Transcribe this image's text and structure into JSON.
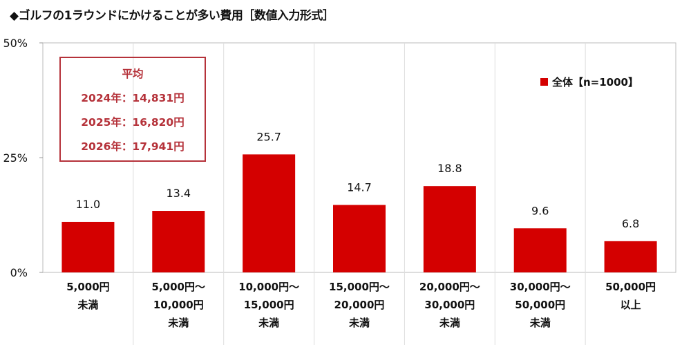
{
  "title": "◆ゴルフの1ラウンドにかけることが多い費用［数値入力形式］",
  "average_box": {
    "heading": "平均",
    "lines": [
      "2024年：14,831円",
      "2025年：16,820円",
      "2026年：17,941円"
    ]
  },
  "chart_data": {
    "type": "bar",
    "title": "◆ゴルフの1ラウンドにかけることが多い費用［数値入力形式］",
    "categories": [
      [
        "5,000円",
        "未満"
      ],
      [
        "5,000円～",
        "10,000円",
        "未満"
      ],
      [
        "10,000円～",
        "15,000円",
        "未満"
      ],
      [
        "15,000円～",
        "20,000円",
        "未満"
      ],
      [
        "20,000円～",
        "30,000円",
        "未満"
      ],
      [
        "30,000円～",
        "50,000円",
        "未満"
      ],
      [
        "50,000円",
        "以上"
      ]
    ],
    "series": [
      {
        "name": "全体【n=1000】",
        "values": [
          11.0,
          13.4,
          25.7,
          14.7,
          18.8,
          9.6,
          6.8
        ],
        "color": "#d40000"
      }
    ],
    "value_labels": [
      "11.0",
      "13.4",
      "25.7",
      "14.7",
      "18.8",
      "9.6",
      "6.8"
    ],
    "yticks": [
      "0%",
      "25%",
      "50%"
    ],
    "ylim": [
      0,
      50
    ],
    "legend_position": "top-right",
    "grid": "vertical category separators"
  }
}
